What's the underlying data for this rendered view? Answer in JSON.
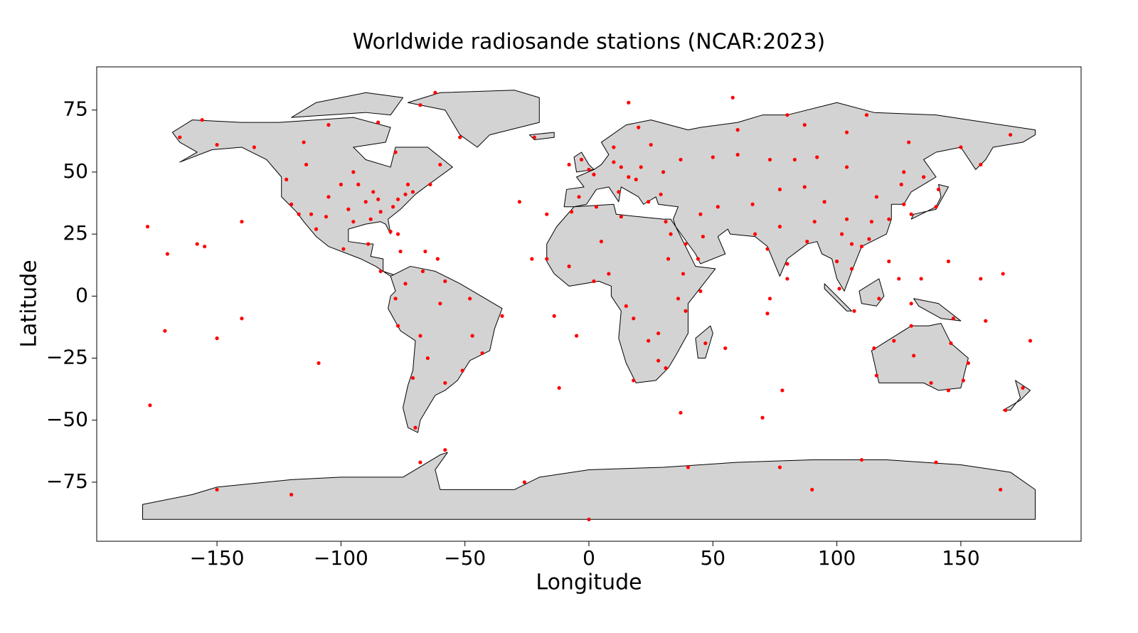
{
  "chart_data": {
    "type": "scatter",
    "title": "Worldwide radiosande stations (NCAR:2023)",
    "xlabel": "Longitude",
    "ylabel": "Latitude",
    "color": "#ff0000",
    "xlim": [
      -198.5,
      198.5
    ],
    "ylim": [
      -98.8,
      92.4
    ],
    "xticks": [
      {
        "value": -150,
        "label": "−150"
      },
      {
        "value": -100,
        "label": "−100"
      },
      {
        "value": -50,
        "label": "−50"
      },
      0,
      50,
      100,
      150
    ],
    "yticks": [
      {
        "value": -75,
        "label": "−75"
      },
      {
        "value": -50,
        "label": "−50"
      },
      {
        "value": -25,
        "label": "−25"
      },
      0,
      25,
      50,
      75
    ],
    "x": [
      -122,
      -117,
      -112,
      -105,
      -97,
      -95,
      -90,
      -87,
      -84,
      -80,
      -77,
      -74,
      -71,
      -100,
      -120,
      -93,
      -88,
      -106,
      -85,
      -79,
      -114,
      -95,
      -73,
      -64,
      -135,
      -115,
      -78,
      -60,
      -105,
      -85,
      -62,
      -150,
      -165,
      -156,
      -68,
      -52,
      -99,
      -110,
      -89,
      -84,
      -76,
      -66,
      -61,
      -77,
      -74,
      -67,
      -58,
      -78,
      -60,
      -48,
      -35,
      -47,
      -43,
      -51,
      -58,
      -77,
      -68,
      -71,
      -65,
      -70,
      -28,
      -17,
      -23,
      -14,
      -5,
      -12,
      0,
      -3,
      -8,
      2,
      10,
      13,
      16,
      21,
      30,
      37,
      12,
      -4,
      24,
      29,
      19,
      10,
      25,
      20,
      -22,
      16,
      50,
      60,
      73,
      83,
      92,
      104,
      127,
      135,
      158,
      60,
      87,
      104,
      129,
      150,
      170,
      112,
      80,
      58,
      66,
      77,
      52,
      45,
      46,
      39,
      44,
      67,
      77,
      72,
      80,
      88,
      91,
      80,
      116,
      121,
      113,
      104,
      102,
      87,
      95,
      126,
      114,
      110,
      127,
      130,
      140,
      141,
      100,
      106,
      106,
      101,
      121,
      125,
      107,
      117,
      130,
      147,
      116,
      115,
      130,
      131,
      138,
      145,
      151,
      153,
      146,
      123,
      175,
      168,
      178,
      -171,
      -150,
      -140,
      -155,
      -158,
      -170,
      145,
      134,
      158,
      167,
      -177,
      -178,
      -140,
      -109,
      160,
      55,
      73,
      72,
      47,
      70,
      78,
      37,
      -17,
      -8,
      2,
      8,
      3,
      -7,
      5,
      13,
      31,
      33,
      32,
      38,
      36,
      39,
      28,
      18,
      15,
      28,
      18,
      31,
      24,
      45,
      -58,
      -68,
      -26,
      0,
      40,
      77,
      110,
      140,
      166,
      -120,
      -150,
      90
    ],
    "y": [
      47,
      33,
      33,
      40,
      35,
      30,
      38,
      42,
      34,
      26,
      39,
      41,
      42,
      45,
      37,
      45,
      31,
      32,
      39,
      36,
      53,
      50,
      45,
      45,
      60,
      62,
      58,
      53,
      69,
      70,
      82,
      61,
      64,
      71,
      77,
      64,
      19,
      27,
      21,
      10,
      18,
      18,
      15,
      25,
      5,
      10,
      6,
      -1,
      -3,
      -1,
      -8,
      -16,
      -23,
      -30,
      -35,
      -12,
      -16,
      -33,
      -25,
      -53,
      38,
      33,
      15,
      -8,
      -16,
      -37,
      51,
      55,
      53,
      49,
      54,
      52,
      48,
      52,
      50,
      55,
      42,
      40,
      38,
      41,
      47,
      60,
      61,
      68,
      64,
      78,
      56,
      57,
      55,
      55,
      56,
      52,
      50,
      48,
      53,
      67,
      69,
      66,
      62,
      60,
      65,
      73,
      73,
      80,
      37,
      43,
      36,
      33,
      24,
      21,
      15,
      25,
      28,
      19,
      13,
      22,
      30,
      7,
      40,
      31,
      23,
      31,
      25,
      44,
      38,
      45,
      30,
      20,
      37,
      33,
      36,
      43,
      14,
      21,
      11,
      3,
      14,
      7,
      -6,
      -1,
      -3,
      -9,
      -32,
      -21,
      -12,
      -24,
      -35,
      -38,
      -34,
      -27,
      -19,
      -18,
      -37,
      -46,
      -18,
      -14,
      -17,
      -9,
      20,
      21,
      17,
      14,
      7,
      7,
      9,
      -44,
      28,
      30,
      -27,
      -10,
      -21,
      -1,
      -7,
      -19,
      -49,
      -38,
      -47,
      15,
      12,
      6,
      9,
      36,
      34,
      22,
      32,
      30,
      25,
      15,
      9,
      -1,
      -6,
      -15,
      -9,
      -4,
      -26,
      -34,
      -29,
      -18,
      2,
      -62,
      -67,
      -75,
      -90,
      -69,
      -69,
      -66,
      -67,
      -78,
      -80,
      -78,
      -78
    ]
  }
}
